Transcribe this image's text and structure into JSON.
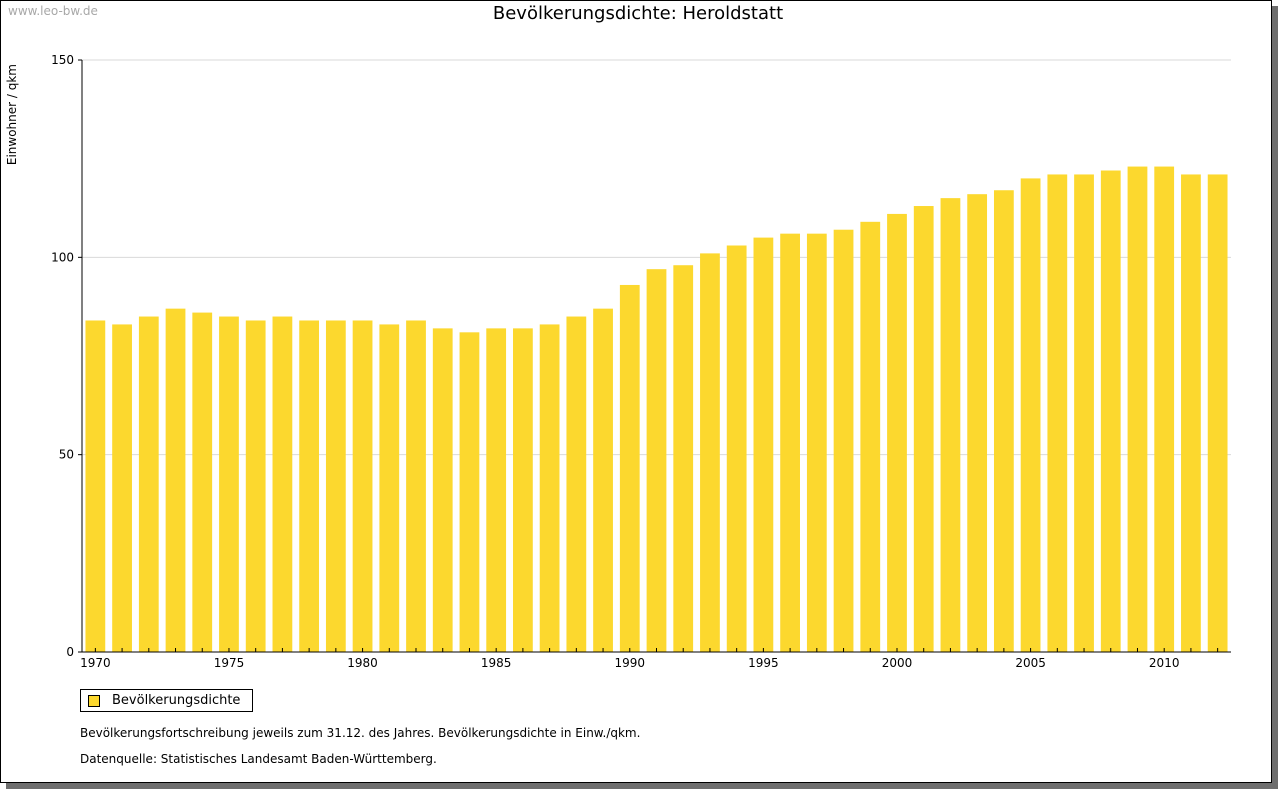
{
  "watermark": "www.leo-bw.de",
  "colors": {
    "bar": "#FCD82E",
    "grid": "#d9d9d9",
    "axis": "#000000"
  },
  "chart_data": {
    "type": "bar",
    "title": "Bevölkerungsdichte: Heroldstatt",
    "ylabel": "Einwohner / qkm",
    "xlabel": "",
    "ylim": [
      0,
      150
    ],
    "yticks": [
      0,
      50,
      100,
      150
    ],
    "xticks": [
      1970,
      1975,
      1980,
      1985,
      1990,
      1995,
      2000,
      2005,
      2010
    ],
    "grid": true,
    "legend": "bottom-left",
    "categories": [
      1970,
      1971,
      1972,
      1973,
      1974,
      1975,
      1976,
      1977,
      1978,
      1979,
      1980,
      1981,
      1982,
      1983,
      1984,
      1985,
      1986,
      1987,
      1988,
      1989,
      1990,
      1991,
      1992,
      1993,
      1994,
      1995,
      1996,
      1997,
      1998,
      1999,
      2000,
      2001,
      2002,
      2003,
      2004,
      2005,
      2006,
      2007,
      2008,
      2009,
      2010,
      2011,
      2012
    ],
    "series": [
      {
        "name": "Bevölkerungsdichte",
        "values": [
          84,
          83,
          85,
          87,
          86,
          85,
          84,
          85,
          84,
          84,
          84,
          83,
          84,
          82,
          81,
          82,
          82,
          83,
          85,
          87,
          93,
          97,
          98,
          101,
          103,
          105,
          106,
          106,
          107,
          109,
          111,
          113,
          115,
          116,
          117,
          120,
          121,
          121,
          122,
          123,
          123,
          121,
          121
        ]
      }
    ]
  },
  "notes": {
    "line1": "Bevölkerungsfortschreibung jeweils zum 31.12. des Jahres. Bevölkerungsdichte in Einw./qkm.",
    "line2": "Datenquelle: Statistisches Landesamt Baden-Württemberg."
  }
}
